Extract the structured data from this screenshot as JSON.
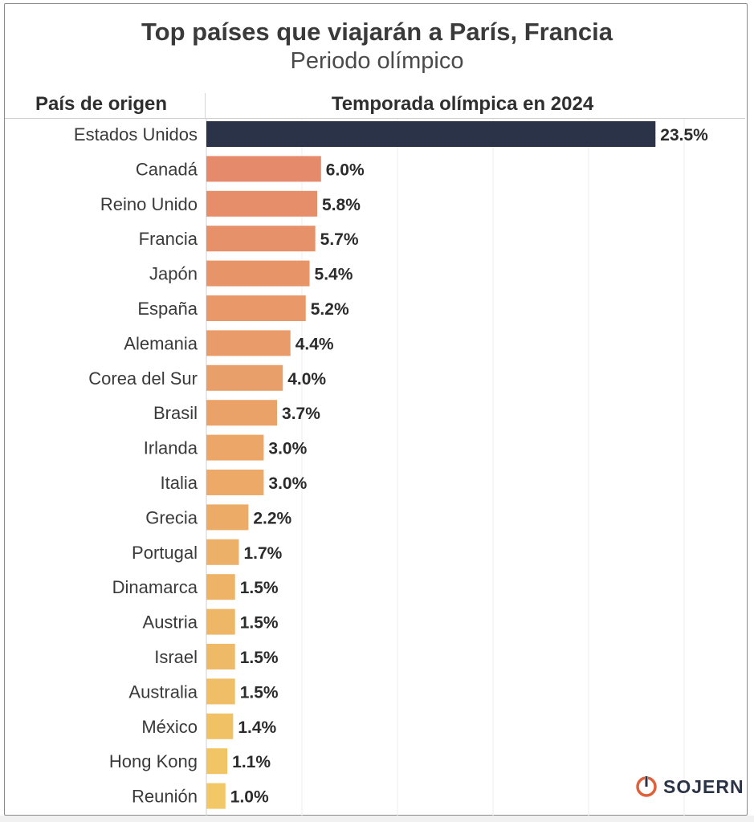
{
  "chart_data": {
    "type": "bar",
    "orientation": "horizontal",
    "title": "Top países que viajarán a París, Francia",
    "subtitle": "Periodo olímpico",
    "category_header": "País de origen",
    "series_header": "Temporada olímpica en 2024",
    "categories": [
      "Estados Unidos",
      "Canadá",
      "Reino Unido",
      "Francia",
      "Japón",
      "España",
      "Alemania",
      "Corea del Sur",
      "Brasil",
      "Irlanda",
      "Italia",
      "Grecia",
      "Portugal",
      "Dinamarca",
      "Austria",
      "Israel",
      "Australia",
      "México",
      "Hong Kong",
      "Reunión"
    ],
    "values": [
      23.5,
      6.0,
      5.8,
      5.7,
      5.4,
      5.2,
      4.4,
      4.0,
      3.7,
      3.0,
      3.0,
      2.2,
      1.7,
      1.5,
      1.5,
      1.5,
      1.5,
      1.4,
      1.1,
      1.0
    ],
    "value_labels": [
      "23.5%",
      "6.0%",
      "5.8%",
      "5.7%",
      "5.4%",
      "5.2%",
      "4.4%",
      "4.0%",
      "3.7%",
      "3.0%",
      "3.0%",
      "2.2%",
      "1.7%",
      "1.5%",
      "1.5%",
      "1.5%",
      "1.5%",
      "1.4%",
      "1.1%",
      "1.0%"
    ],
    "xlim": [
      0,
      25
    ],
    "gridlines_at": [
      0,
      5,
      10,
      15,
      20,
      25
    ],
    "grid": true,
    "highlight_color": "#2a3347",
    "gradient_colors": [
      "#e58a6a",
      "#f2c866"
    ]
  },
  "brand": {
    "name": "SOJERN",
    "icon": "sojern-logo-icon",
    "icon_color": "#e0603a"
  }
}
